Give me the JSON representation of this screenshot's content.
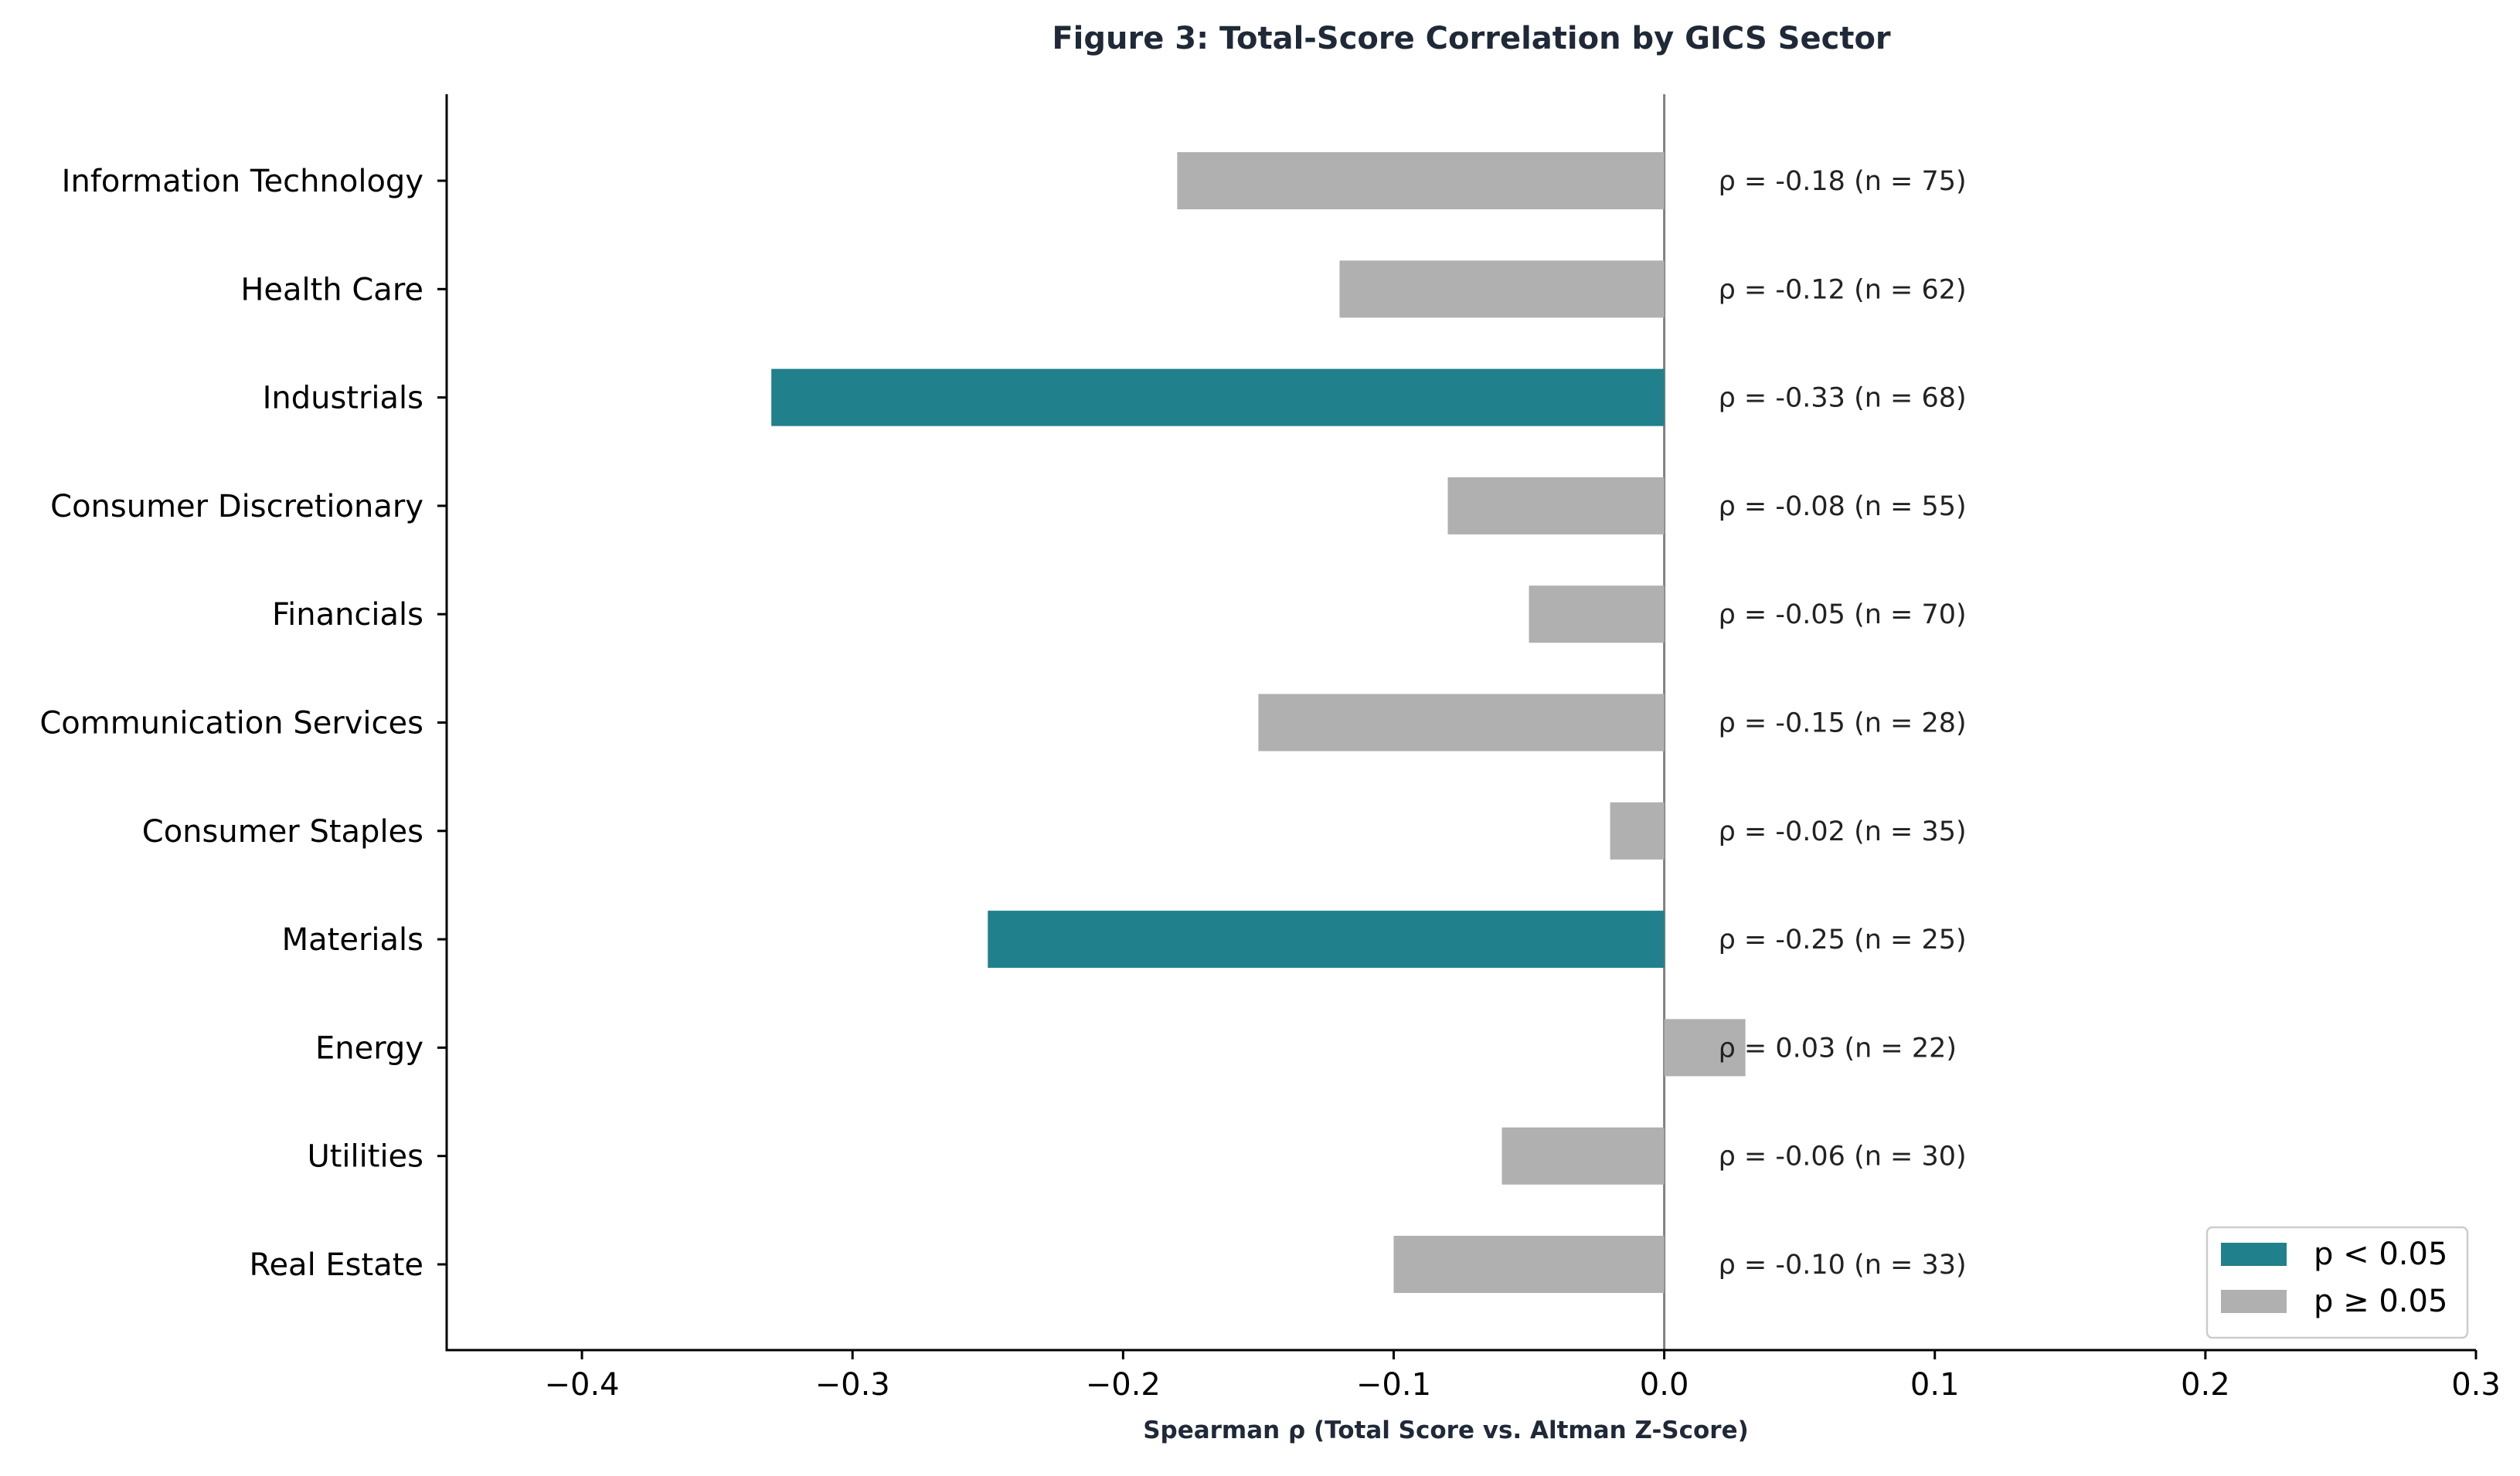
{
  "chart_data": {
    "type": "bar",
    "orientation": "horizontal",
    "title": "Figure 3: Total-Score Correlation by GICS Sector",
    "xlabel": "Spearman ρ (Total Score vs. Altman Z-Score)",
    "ylabel": "",
    "xlim": [
      -0.45,
      0.3
    ],
    "xticks": [
      -0.4,
      -0.3,
      -0.2,
      -0.1,
      0.0,
      0.1,
      0.2,
      0.3
    ],
    "xtick_labels": [
      "−0.4",
      "−0.3",
      "−0.2",
      "−0.1",
      "0.0",
      "0.1",
      "0.2",
      "0.3"
    ],
    "grid": false,
    "categories": [
      "Information Technology",
      "Health Care",
      "Industrials",
      "Consumer Discretionary",
      "Financials",
      "Communication Services",
      "Consumer Staples",
      "Materials",
      "Energy",
      "Utilities",
      "Real Estate"
    ],
    "values": [
      -0.18,
      -0.12,
      -0.33,
      -0.08,
      -0.05,
      -0.15,
      -0.02,
      -0.25,
      0.03,
      -0.06,
      -0.1
    ],
    "n": [
      75,
      62,
      68,
      55,
      70,
      28,
      35,
      25,
      22,
      30,
      33
    ],
    "significant": [
      false,
      false,
      true,
      false,
      false,
      false,
      false,
      true,
      false,
      false,
      false
    ],
    "annotations": [
      "ρ = -0.18  (n = 75)",
      "ρ = -0.12  (n = 62)",
      "ρ = -0.33  (n = 68)",
      "ρ = -0.08  (n = 55)",
      "ρ = -0.05  (n = 70)",
      "ρ = -0.15  (n = 28)",
      "ρ = -0.02  (n = 35)",
      "ρ = -0.25  (n = 25)",
      "ρ = 0.03  (n = 22)",
      "ρ = -0.06  (n = 30)",
      "ρ = -0.10  (n = 33)"
    ],
    "legend": {
      "position": "bottom-right",
      "entries": [
        {
          "label": "p < 0.05",
          "color": "#20808b"
        },
        {
          "label": "p ≥ 0.05",
          "color": "#b0b0b0"
        }
      ]
    },
    "colors": {
      "significant": "#20808b",
      "not_significant": "#b0b0b0",
      "zero_line": "#808080",
      "axis": "#000000"
    }
  }
}
